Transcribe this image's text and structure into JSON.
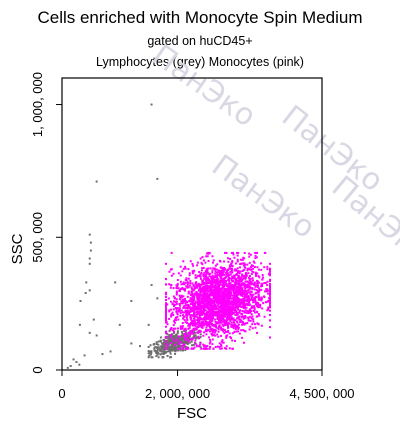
{
  "title": "Cells enriched with Monocyte Spin Medium",
  "subtitle_gate": "gated on huCD45+",
  "subtitle_legend": "Lymphocytes (grey) Monocytes (pink)",
  "watermark": "ПанЭко",
  "colors": {
    "lymphocytes": "#6e6e6e",
    "monocytes": "#ff00ff",
    "watermark": "#d8d8e4"
  },
  "chart_data": {
    "type": "scatter",
    "title": "Cells enriched with Monocyte Spin Medium",
    "subtitle": "gated on huCD45+ / Lymphocytes (grey) Monocytes (pink)",
    "xlabel": "FSC",
    "ylabel": "SSC",
    "xlim": [
      0,
      4500000
    ],
    "ylim": [
      0,
      1100000
    ],
    "x_ticks": [
      0,
      2000000,
      4500000
    ],
    "x_tick_labels": [
      "0",
      "2, 000, 000",
      "4, 500, 000"
    ],
    "y_ticks": [
      0,
      500000,
      1000000
    ],
    "y_tick_labels": [
      "0",
      "500, 000",
      "1, 000, 000"
    ],
    "grid": false,
    "series": [
      {
        "name": "Lymphocytes",
        "color": "grey",
        "cluster": {
          "x_range": [
            1500000,
            2400000
          ],
          "y_range": [
            60000,
            140000
          ],
          "approx_count": 420
        },
        "points": [
          [
            1550000,
            1000000
          ],
          [
            600000,
            710000
          ],
          [
            1650000,
            720000
          ],
          [
            480000,
            510000
          ],
          [
            500000,
            480000
          ],
          [
            500000,
            450000
          ],
          [
            480000,
            420000
          ],
          [
            480000,
            400000
          ],
          [
            420000,
            330000
          ],
          [
            480000,
            300000
          ],
          [
            410000,
            290000
          ],
          [
            320000,
            260000
          ],
          [
            920000,
            330000
          ],
          [
            1200000,
            260000
          ],
          [
            1650000,
            270000
          ],
          [
            1550000,
            320000
          ],
          [
            1000000,
            170000
          ],
          [
            1500000,
            170000
          ],
          [
            550000,
            190000
          ],
          [
            310000,
            170000
          ],
          [
            480000,
            140000
          ],
          [
            600000,
            130000
          ],
          [
            840000,
            70000
          ],
          [
            200000,
            40000
          ],
          [
            300000,
            20000
          ],
          [
            150000,
            15000
          ],
          [
            100000,
            8000
          ],
          [
            250000,
            30000
          ],
          [
            390000,
            55000
          ],
          [
            700000,
            60000
          ],
          [
            1200000,
            100000
          ],
          [
            1350000,
            90000
          ]
        ]
      },
      {
        "name": "Monocytes",
        "color": "pink",
        "cluster": {
          "x_range": [
            1800000,
            3600000
          ],
          "y_range": [
            100000,
            420000
          ],
          "approx_count": 2600
        },
        "points": [
          [
            1800000,
            400000
          ],
          [
            1900000,
            380000
          ],
          [
            3350000,
            430000
          ],
          [
            3550000,
            320000
          ],
          [
            3600000,
            250000
          ],
          [
            2400000,
            420000
          ]
        ]
      }
    ]
  }
}
